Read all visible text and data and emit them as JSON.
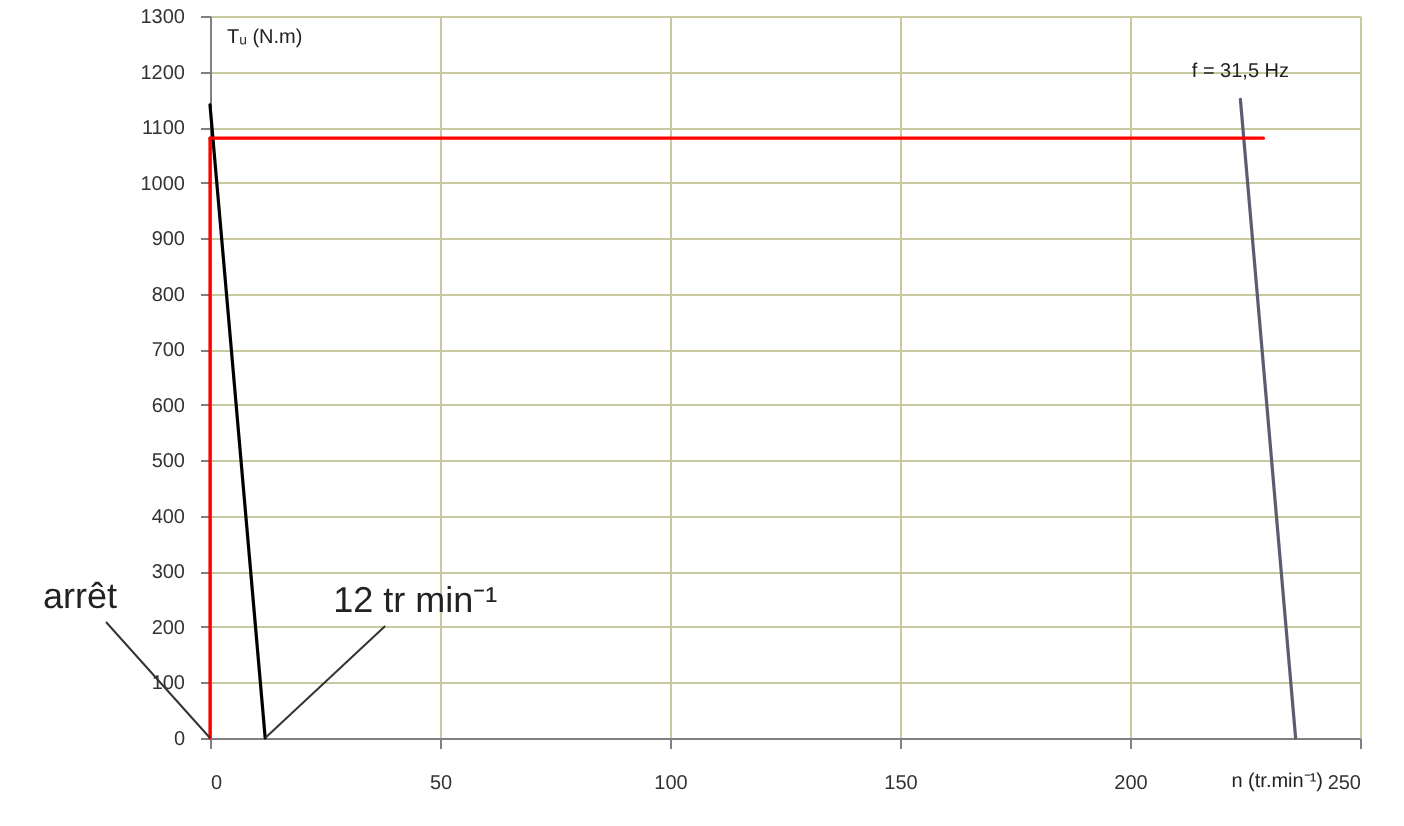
{
  "chart_data": {
    "type": "line",
    "xlabel": "n (tr.min⁻¹)",
    "ylabel": "Tᵤ (N.m)",
    "xlim": [
      0,
      250
    ],
    "xticks": [
      0,
      50,
      100,
      150,
      200,
      250
    ],
    "ylim": [
      0,
      1300
    ],
    "yticks": [
      0,
      100,
      200,
      300,
      400,
      500,
      600,
      700,
      800,
      900,
      1000,
      1100,
      1200,
      1300
    ],
    "grid": true,
    "marker": "none",
    "line_style": "solid",
    "series": [
      {
        "x": [
          0,
          12
        ],
        "values": [
          1140,
          0
        ],
        "color": "#000000"
      },
      {
        "x": [
          224,
          236
        ],
        "values": [
          1150,
          0
        ],
        "color": "#5a5c70"
      },
      {
        "x": [
          0,
          229
        ],
        "values": [
          1080,
          1080
        ],
        "color": "#ff0000"
      },
      {
        "x": [
          0,
          0
        ],
        "values": [
          1080,
          0
        ],
        "color": "#ff0000"
      }
    ],
    "annotations": [
      {
        "text": "f = 31,5 Hz",
        "x": 224,
        "y": 1150
      },
      {
        "text": "arrêt",
        "x": 0,
        "y": 0
      },
      {
        "text": "12 tr min⁻¹",
        "x": 12,
        "y": 0
      }
    ]
  }
}
